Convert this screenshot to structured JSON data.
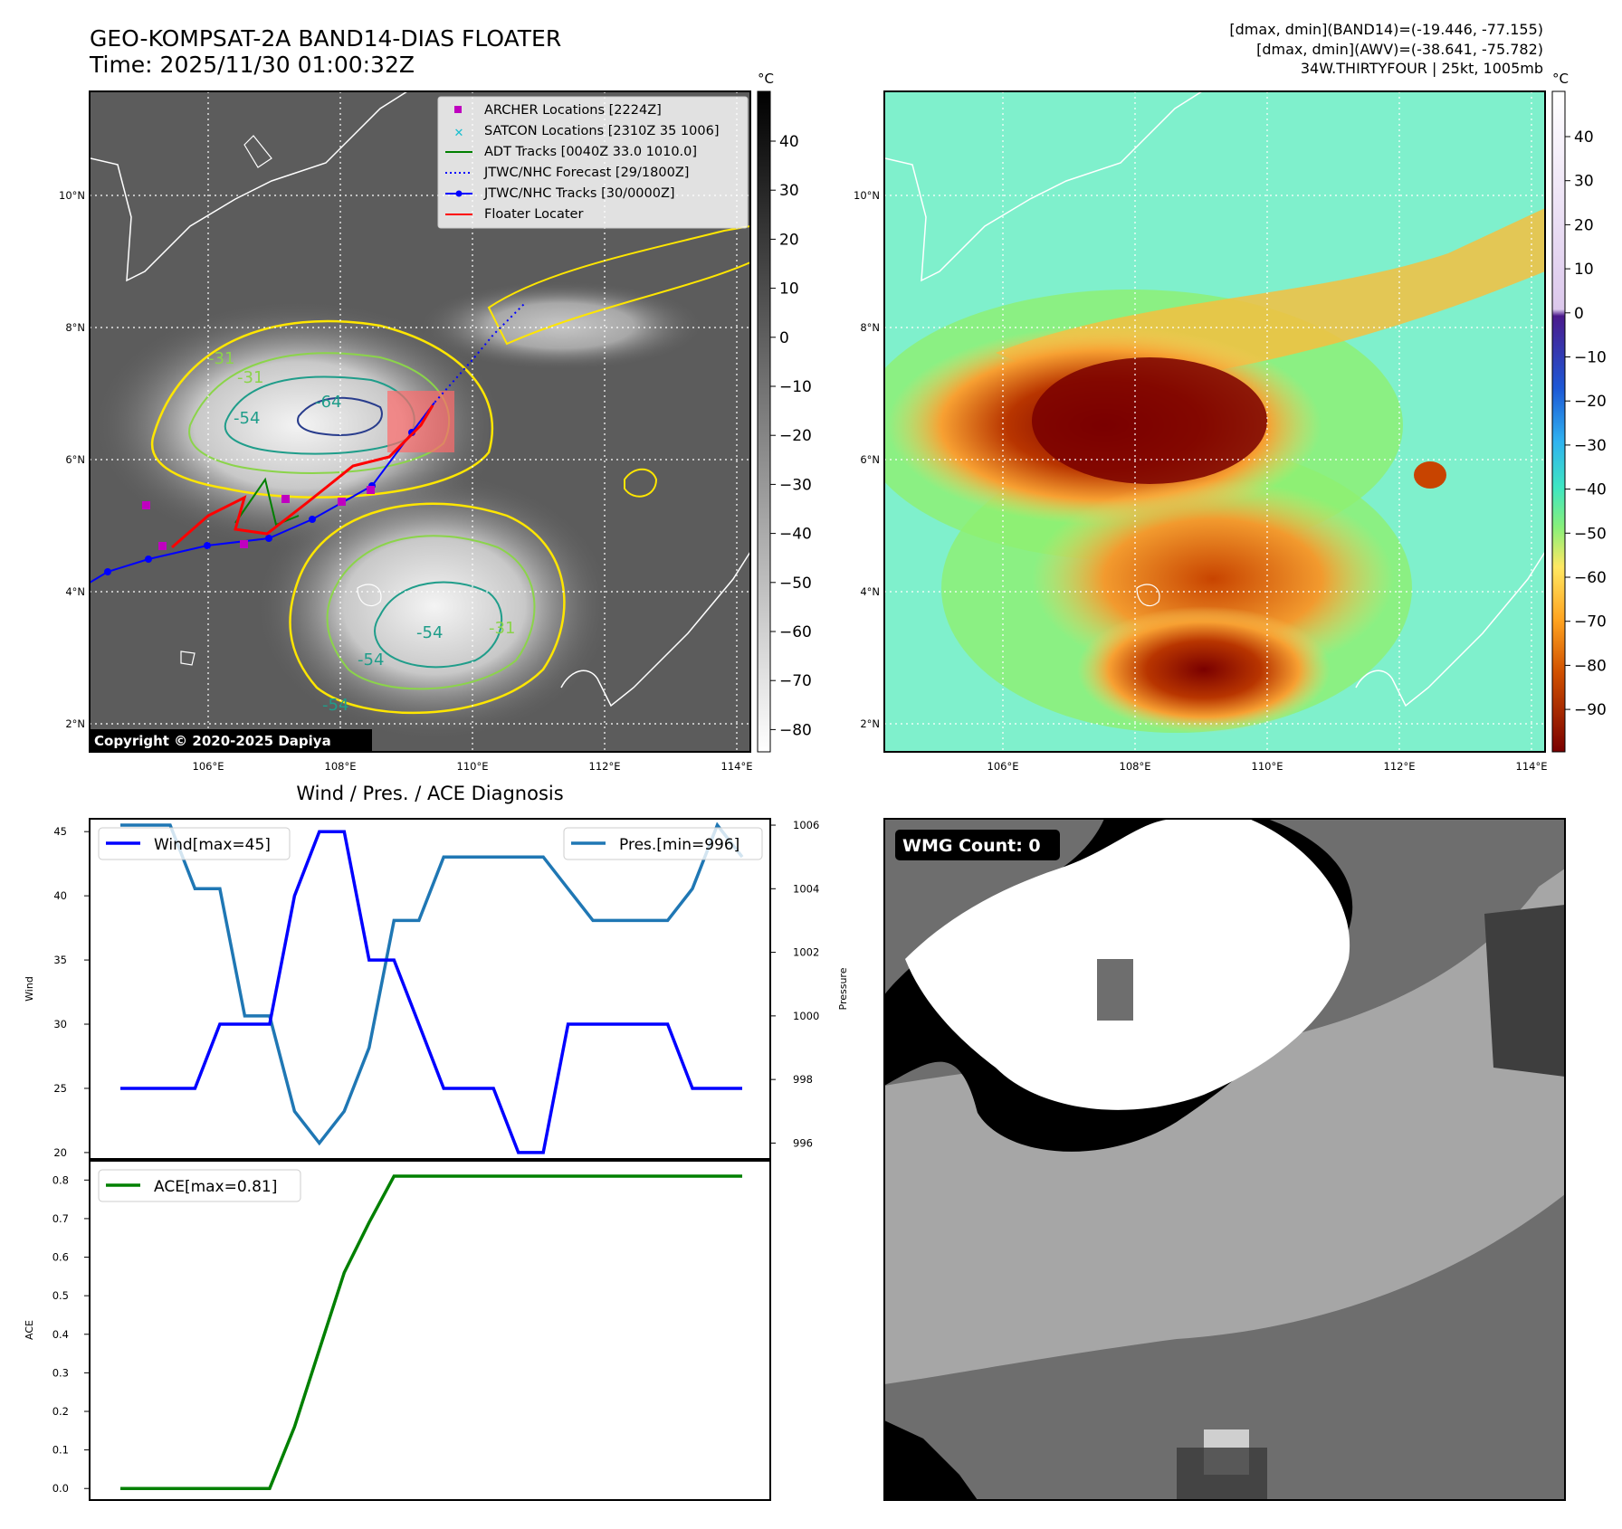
{
  "header": {
    "title_line1": "GEO-KOMPSAT-2A BAND14-DIAS FLOATER",
    "title_line2": "Time: 2025/11/30 01:00:32Z",
    "info_line1": "[dmax, dmin](BAND14)=(-19.446, -77.155)",
    "info_line2": "[dmax, dmin](AWV)=(-38.641, -75.782)",
    "info_line3": "34W.THIRTYFOUR | 25kt, 1005mb"
  },
  "maps": {
    "lon_ticks": [
      "106°E",
      "108°E",
      "110°E",
      "112°E",
      "114°E"
    ],
    "lat_ticks": [
      "10°N",
      "8°N",
      "6°N",
      "4°N",
      "2°N"
    ],
    "copyright": "Copyright © 2020-2025 Dapiya",
    "contour_labels": [
      "-31",
      "-31",
      "-64",
      "-54",
      "-54",
      "-54",
      "-31",
      "-54"
    ],
    "left_colorbar": {
      "unit": "°C",
      "ticks": [
        "40",
        "30",
        "20",
        "10",
        "0",
        "−10",
        "−20",
        "−30",
        "−40",
        "−50",
        "−60",
        "−70",
        "−80"
      ]
    },
    "right_colorbar": {
      "unit": "°C",
      "ticks": [
        "40",
        "30",
        "20",
        "10",
        "0",
        "−10",
        "−20",
        "−30",
        "−40",
        "−50",
        "−60",
        "−70",
        "−80",
        "−90"
      ]
    },
    "legend": [
      {
        "label": "ARCHER Locations [2224Z]",
        "color": "#bf00bf",
        "kind": "square"
      },
      {
        "label": "SATCON Locations [2310Z 35 1006]",
        "color": "#17becf",
        "kind": "x"
      },
      {
        "label": "ADT Tracks [0040Z 33.0 1010.0]",
        "color": "#008000",
        "kind": "line"
      },
      {
        "label": "JTWC/NHC Forecast [29/1800Z]",
        "color": "#0000ff",
        "kind": "dotted"
      },
      {
        "label": "JTWC/NHC Tracks [30/0000Z]",
        "color": "#0000ff",
        "kind": "dotline"
      },
      {
        "label": "Floater Locater",
        "color": "#ff0000",
        "kind": "line"
      }
    ]
  },
  "wmg": {
    "label": "WMG Count: 0"
  },
  "diagnosis": {
    "title": "Wind / Pres. / ACE Diagnosis"
  },
  "chart_data": [
    {
      "type": "line",
      "title": "Wind / Pres. / ACE Diagnosis",
      "ylabel": "Wind",
      "y2label": "Pressure",
      "ylim": [
        19.5,
        46
      ],
      "y2lim": [
        995.5,
        1006.2
      ],
      "yticks": [
        20,
        25,
        30,
        35,
        40,
        45
      ],
      "y2ticks": [
        996,
        998,
        1000,
        1002,
        1004,
        1006
      ],
      "series": [
        {
          "name": "Wind[max=45]",
          "axis": "left",
          "color": "#0000ff",
          "values": [
            25,
            25,
            25,
            25,
            30,
            30,
            30,
            40,
            45,
            45,
            35,
            35,
            30,
            25,
            25,
            25,
            20,
            20,
            30,
            30,
            30,
            30,
            30,
            25,
            25,
            25
          ]
        },
        {
          "name": "Pres.[min=996]",
          "axis": "right",
          "color": "#1f77b4",
          "values": [
            1006,
            1006,
            1006,
            1004,
            1004,
            1000,
            1000,
            997,
            996,
            997,
            999,
            1003,
            1003,
            1005,
            1005,
            1005,
            1005,
            1005,
            1004,
            1003,
            1003,
            1003,
            1003,
            1004,
            1006,
            1005
          ]
        }
      ]
    },
    {
      "type": "line",
      "ylabel": "ACE",
      "ylim": [
        -0.03,
        0.85
      ],
      "yticks": [
        0.0,
        0.1,
        0.2,
        0.3,
        0.4,
        0.5,
        0.6,
        0.7,
        0.8
      ],
      "series": [
        {
          "name": "ACE[max=0.81]",
          "color": "#008000",
          "values": [
            0,
            0,
            0,
            0,
            0,
            0,
            0,
            0.16,
            0.36,
            0.56,
            0.69,
            0.81,
            0.81,
            0.81,
            0.81,
            0.81,
            0.81,
            0.81,
            0.81,
            0.81,
            0.81,
            0.81,
            0.81,
            0.81,
            0.81,
            0.81
          ]
        }
      ]
    }
  ]
}
